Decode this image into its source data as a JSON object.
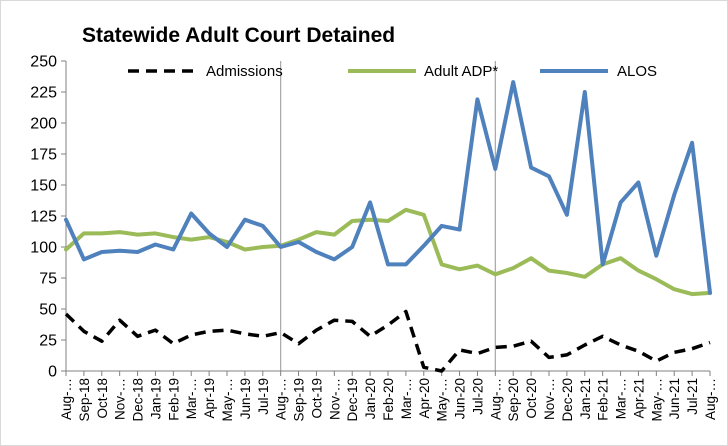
{
  "chart_data": {
    "type": "line",
    "title": "Statewide Adult Court Detained",
    "xlabel": "",
    "ylabel": "",
    "ylim": [
      0,
      250
    ],
    "y_ticks": [
      0,
      25,
      50,
      75,
      100,
      125,
      150,
      175,
      200,
      225,
      250
    ],
    "grid": "vertical-yearly",
    "legend_position": "top",
    "categories": [
      "Aug-18",
      "Sep-18",
      "Oct-18",
      "Nov-18",
      "Dec-18",
      "Jan-19",
      "Feb-19",
      "Mar-19",
      "Apr-19",
      "May-19",
      "Jun-19",
      "Jul-19",
      "Aug-19",
      "Sep-19",
      "Oct-19",
      "Nov-19",
      "Dec-19",
      "Jan-20",
      "Feb-20",
      "Mar-20",
      "Apr-20",
      "May-20",
      "Jun-20",
      "Jul-20",
      "Aug-20",
      "Sep-20",
      "Oct-20",
      "Nov-20",
      "Dec-20",
      "Jan-21",
      "Feb-21",
      "Mar-21",
      "Apr-21",
      "May-21",
      "Jun-21",
      "Jul-21",
      "Aug-21"
    ],
    "x_tick_labels": [
      "Aug-…",
      "Sep-18",
      "Oct-18",
      "Nov-…",
      "Dec-18",
      "Jan-19",
      "Feb-19",
      "Mar-…",
      "Apr-19",
      "May-…",
      "Jun-19",
      "Jul-19",
      "Aug-…",
      "Sep-19",
      "Oct-19",
      "Nov-…",
      "Dec-19",
      "Jan-20",
      "Feb-20",
      "Mar-…",
      "Apr-20",
      "May-…",
      "Jun-20",
      "Jul-20",
      "Aug-…",
      "Sep-20",
      "Oct-20",
      "Nov-…",
      "Dec-20",
      "Jan-21",
      "Feb-21",
      "Mar-…",
      "Apr-21",
      "May-…",
      "Jun-21",
      "Jul-21",
      "Aug-…"
    ],
    "series": [
      {
        "name": "Admissions",
        "color": "#000000",
        "style": "dashed",
        "values": [
          46,
          32,
          24,
          41,
          28,
          33,
          22,
          29,
          32,
          33,
          30,
          28,
          31,
          22,
          33,
          41,
          40,
          28,
          37,
          48,
          3,
          0,
          17,
          14,
          19,
          20,
          24,
          11,
          13,
          21,
          28,
          21,
          16,
          8,
          15,
          18,
          23
        ]
      },
      {
        "name": "Adult ADP*",
        "color": "#9bbb59",
        "style": "solid",
        "values": [
          98,
          111,
          111,
          112,
          110,
          111,
          108,
          106,
          108,
          104,
          98,
          100,
          101,
          106,
          112,
          110,
          121,
          122,
          121,
          130,
          126,
          86,
          82,
          85,
          78,
          83,
          91,
          81,
          79,
          76,
          86,
          91,
          81,
          74,
          66,
          62,
          63
        ]
      },
      {
        "name": "ALOS",
        "color": "#4f81bd",
        "style": "solid",
        "values": [
          122,
          90,
          96,
          97,
          96,
          102,
          98,
          127,
          111,
          100,
          122,
          117,
          100,
          104,
          96,
          90,
          100,
          136,
          86,
          86,
          101,
          117,
          114,
          219,
          163,
          233,
          164,
          157,
          126,
          225,
          86,
          136,
          152,
          93,
          142,
          184,
          63
        ]
      }
    ]
  }
}
